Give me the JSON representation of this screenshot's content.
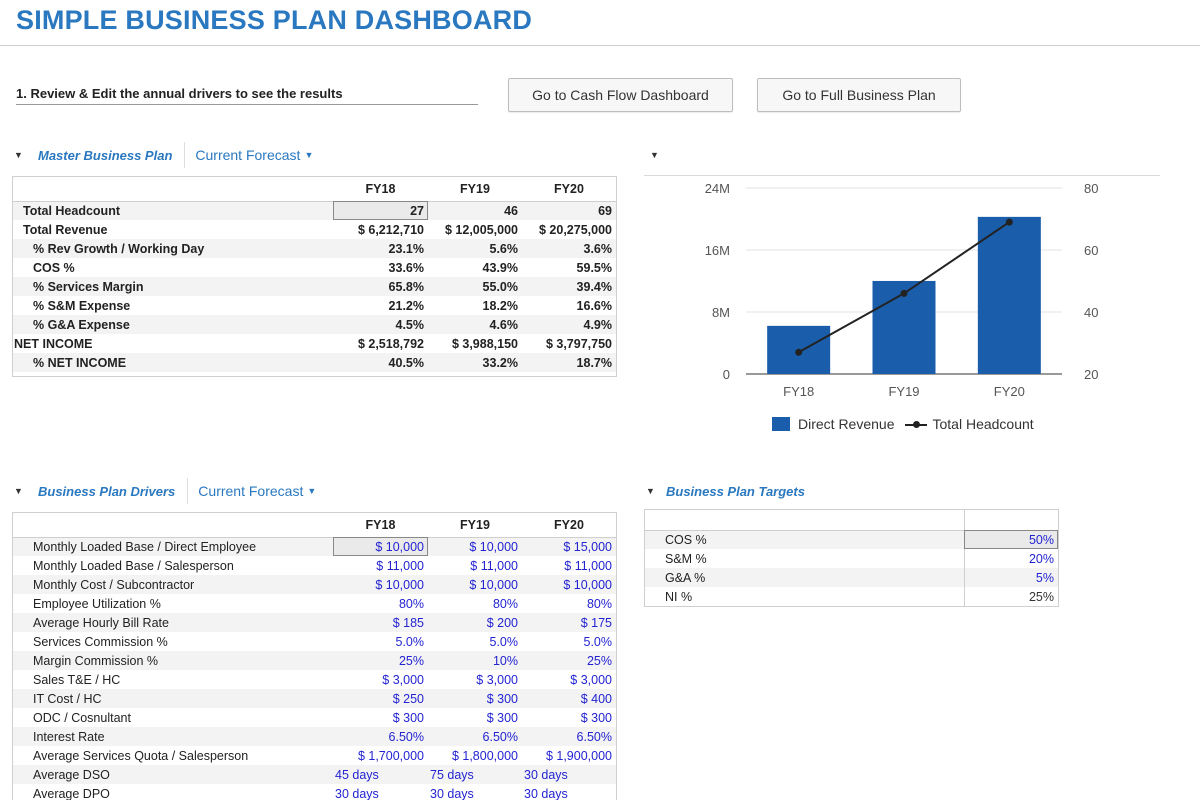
{
  "title": "SIMPLE BUSINESS PLAN DASHBOARD",
  "instruction": "1. Review & Edit the annual drivers to see the results",
  "buttons": {
    "cash_flow": "Go to Cash Flow Dashboard",
    "full_plan": "Go to Full Business Plan"
  },
  "master": {
    "title": "Master Business Plan",
    "filter": "Current Forecast",
    "columns": [
      "FY18",
      "FY19",
      "FY20"
    ],
    "rows": [
      {
        "label": "Total Headcount",
        "values": [
          "27",
          "46",
          "69"
        ]
      },
      {
        "label": "Total Revenue",
        "values": [
          "$ 6,212,710",
          "$ 12,005,000",
          "$ 20,275,000"
        ]
      },
      {
        "label": "% Rev Growth / Working Day",
        "values": [
          "23.1%",
          "5.6%",
          "3.6%"
        ]
      },
      {
        "label": "COS %",
        "values": [
          "33.6%",
          "43.9%",
          "59.5%"
        ]
      },
      {
        "label": "% Services Margin",
        "values": [
          "65.8%",
          "55.0%",
          "39.4%"
        ]
      },
      {
        "label": "% S&M Expense",
        "values": [
          "21.2%",
          "18.2%",
          "16.6%"
        ]
      },
      {
        "label": "% G&A Expense",
        "values": [
          "4.5%",
          "4.6%",
          "4.9%"
        ]
      },
      {
        "label": "NET INCOME",
        "values": [
          "$ 2,518,792",
          "$ 3,988,150",
          "$ 3,797,750"
        ]
      },
      {
        "label": "% NET INCOME",
        "values": [
          "40.5%",
          "33.2%",
          "18.7%"
        ]
      }
    ]
  },
  "drivers": {
    "title": "Business Plan Drivers",
    "filter": "Current Forecast",
    "columns": [
      "FY18",
      "FY19",
      "FY20"
    ],
    "rows": [
      {
        "label": "Monthly Loaded Base / Direct Employee",
        "values": [
          "$ 10,000",
          "$ 10,000",
          "$ 15,000"
        ]
      },
      {
        "label": "Monthly Loaded Base / Salesperson",
        "values": [
          "$ 11,000",
          "$ 11,000",
          "$ 11,000"
        ]
      },
      {
        "label": "Monthly Cost / Subcontractor",
        "values": [
          "$ 10,000",
          "$ 10,000",
          "$ 10,000"
        ]
      },
      {
        "label": "Employee Utilization %",
        "values": [
          "80%",
          "80%",
          "80%"
        ]
      },
      {
        "label": "Average Hourly Bill Rate",
        "values": [
          "$ 185",
          "$ 200",
          "$ 175"
        ]
      },
      {
        "label": "Services Commission %",
        "values": [
          "5.0%",
          "5.0%",
          "5.0%"
        ]
      },
      {
        "label": "Margin Commission %",
        "values": [
          "25%",
          "10%",
          "25%"
        ]
      },
      {
        "label": "Sales T&E / HC",
        "values": [
          "$ 3,000",
          "$ 3,000",
          "$ 3,000"
        ]
      },
      {
        "label": "IT Cost / HC",
        "values": [
          "$ 250",
          "$ 300",
          "$ 400"
        ]
      },
      {
        "label": "ODC / Cosnultant",
        "values": [
          "$ 300",
          "$ 300",
          "$ 300"
        ]
      },
      {
        "label": "Interest Rate",
        "values": [
          "6.50%",
          "6.50%",
          "6.50%"
        ]
      },
      {
        "label": "Average Services Quota / Salesperson",
        "values": [
          "$ 1,700,000",
          "$ 1,800,000",
          "$ 1,900,000"
        ]
      },
      {
        "label": "Average DSO",
        "values": [
          "45 days",
          "75 days",
          "30 days"
        ]
      },
      {
        "label": "Average DPO",
        "values": [
          "30 days",
          "30 days",
          "30 days"
        ]
      }
    ]
  },
  "targets": {
    "title": "Business Plan Targets",
    "rows": [
      {
        "label": "COS %",
        "value": "50%"
      },
      {
        "label": "S&M %",
        "value": "20%"
      },
      {
        "label": "G&A %",
        "value": "5%"
      },
      {
        "label": "NI %",
        "value": "25%"
      }
    ]
  },
  "chart_data": {
    "type": "bar",
    "categories": [
      "FY18",
      "FY19",
      "FY20"
    ],
    "series": [
      {
        "name": "Direct Revenue",
        "type": "bar",
        "axis": "left",
        "values": [
          6212710,
          12005000,
          20275000
        ]
      },
      {
        "name": "Total Headcount",
        "type": "line",
        "axis": "right",
        "values": [
          27,
          46,
          69
        ]
      }
    ],
    "left_axis": {
      "range": [
        0,
        24000000
      ],
      "ticks": [
        "0",
        "8M",
        "16M",
        "24M"
      ]
    },
    "right_axis": {
      "range": [
        20,
        80
      ],
      "ticks": [
        "20",
        "40",
        "60",
        "80"
      ]
    },
    "legend": [
      "Direct Revenue",
      "Total Headcount"
    ],
    "legend_position": "bottom",
    "colors": {
      "bar": "#1a5eab",
      "line": "#222222"
    }
  }
}
